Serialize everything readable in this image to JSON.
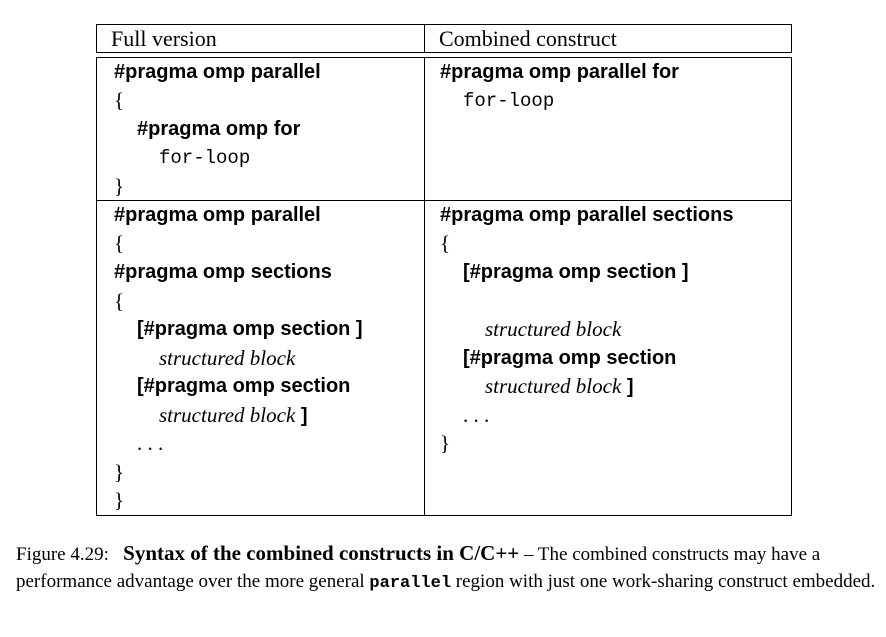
{
  "table": {
    "header": {
      "left": "Full version",
      "right": "Combined construct"
    },
    "row1": {
      "left": [
        {
          "style": "kw",
          "text": "#pragma omp parallel"
        },
        {
          "style": "rm",
          "text": "{"
        },
        {
          "style": "kw",
          "text": "#pragma omp for"
        },
        {
          "style": "tt",
          "text": "for-loop"
        },
        {
          "style": "rm",
          "text": "}"
        }
      ],
      "right": [
        {
          "style": "kw",
          "text": "#pragma omp parallel for"
        },
        {
          "style": "tt",
          "text": "for-loop"
        }
      ]
    },
    "row2": {
      "left": [
        {
          "style": "kw",
          "text": "#pragma omp parallel"
        },
        {
          "style": "rm",
          "text": "{"
        },
        {
          "style": "kw",
          "text": "#pragma omp sections"
        },
        {
          "style": "rm",
          "text": "{"
        },
        {
          "style": "kw",
          "text": "[#pragma omp section ]"
        },
        {
          "style": "it",
          "text": "structured block"
        },
        {
          "style": "kw",
          "text": "[#pragma omp section"
        },
        {
          "style": "it",
          "text": "structured block",
          "suffix": " ]"
        },
        {
          "style": "rm",
          "text": ". . ."
        },
        {
          "style": "rm",
          "text": "}"
        },
        {
          "style": "rm",
          "text": "}"
        }
      ],
      "right": [
        {
          "style": "kw",
          "text": "#pragma omp parallel sections"
        },
        {
          "style": "rm",
          "text": "{"
        },
        {
          "style": "kw",
          "text": "[#pragma omp section ]"
        },
        {
          "style": "it",
          "text": "structured block"
        },
        {
          "style": "kw",
          "text": "[#pragma omp section"
        },
        {
          "style": "it",
          "text": "structured block",
          "suffix": " ]"
        },
        {
          "style": "rm",
          "text": ". . ."
        },
        {
          "style": "rm",
          "text": "}"
        }
      ]
    }
  },
  "caption": {
    "label": "Figure 4.29:",
    "title": "Syntax of the combined constructs in C/C++",
    "dash": " – ",
    "body_1": "The combined constructs may have a performance advantage over the more general ",
    "code": "parallel",
    "body_2": " region with just one work-sharing construct embedded."
  }
}
